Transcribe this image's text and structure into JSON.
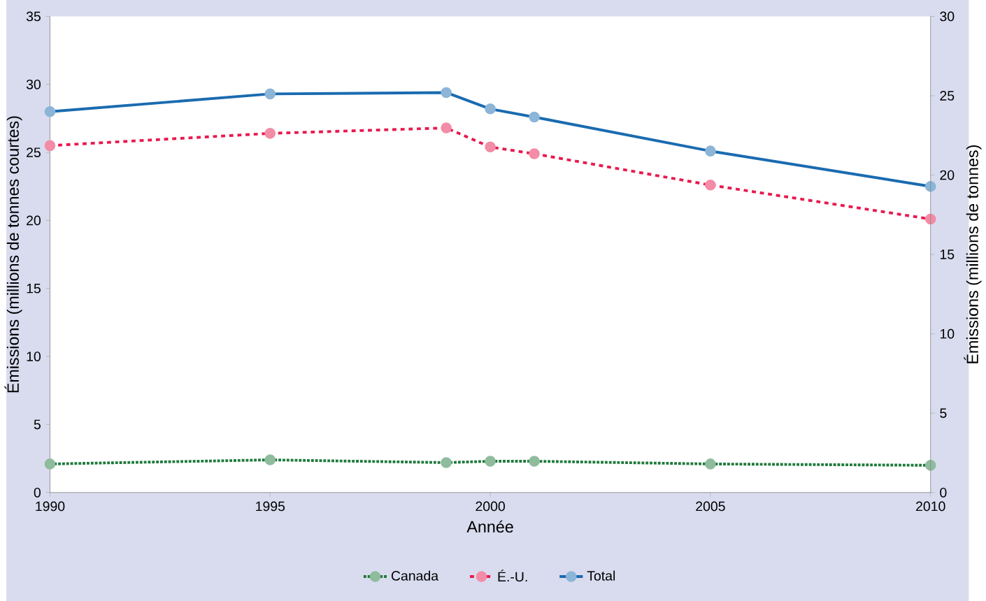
{
  "chart_data": {
    "type": "line",
    "xlabel": "Année",
    "ylabel": "Émissions (millions de tonnes courtes)",
    "y2label": "Émissions (millions de tonnes)",
    "x": [
      1990,
      1995,
      1999,
      2000,
      2001,
      2005,
      2010
    ],
    "series": [
      {
        "name": "Canada",
        "color": "#1e7a3c",
        "line_style": "dotted",
        "values": [
          2.1,
          2.4,
          2.2,
          2.3,
          2.3,
          2.1,
          2.0
        ]
      },
      {
        "name": "É.-U.",
        "color": "#e8194f",
        "line_style": "dashed",
        "values": [
          25.5,
          26.4,
          26.8,
          25.4,
          24.9,
          22.6,
          20.1
        ]
      },
      {
        "name": "Total",
        "color": "#1a6bb0",
        "line_style": "solid",
        "values": [
          28.0,
          29.3,
          29.4,
          28.2,
          27.6,
          25.1,
          22.5
        ]
      }
    ],
    "xlim": [
      1990,
      2010
    ],
    "xticks": [
      1990,
      1995,
      2000,
      2005,
      2010
    ],
    "ylim": [
      0,
      35
    ],
    "yticks": [
      0,
      5,
      10,
      15,
      20,
      25,
      30,
      35
    ],
    "y2lim": [
      0,
      30
    ],
    "y2ticks": [
      0,
      5,
      10,
      15,
      20,
      25,
      30
    ],
    "marker": "circle",
    "legend": "bottom",
    "grid": false
  }
}
